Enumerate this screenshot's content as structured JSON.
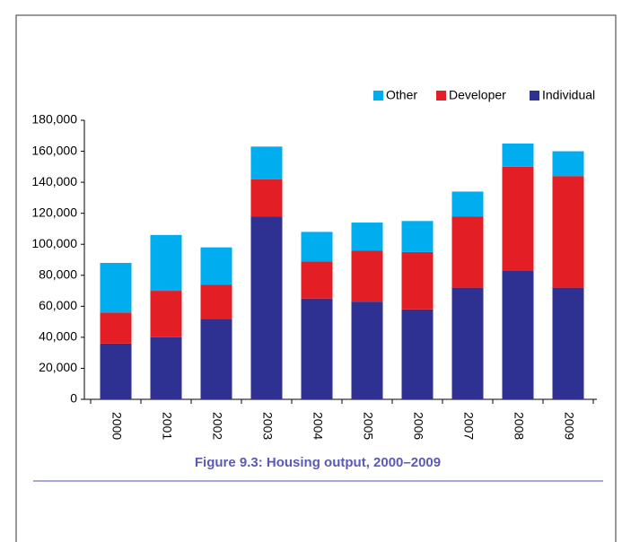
{
  "chart_data": {
    "type": "stacked_bar",
    "caption": "Figure 9.3: Housing output, 2000–2009",
    "categories": [
      "2000",
      "2001",
      "2002",
      "2003",
      "2004",
      "2005",
      "2006",
      "2007",
      "2008",
      "2009"
    ],
    "series": [
      {
        "name": "Other",
        "color": "#00aeef",
        "values": [
          32000,
          36000,
          24000,
          21000,
          19000,
          18000,
          20000,
          16000,
          15000,
          16000
        ]
      },
      {
        "name": "Developer",
        "color": "#e31e24",
        "values": [
          20000,
          30000,
          22000,
          24000,
          24000,
          33000,
          37000,
          46000,
          67000,
          72000
        ]
      },
      {
        "name": "Individual",
        "color": "#2e3192",
        "values": [
          36000,
          40000,
          52000,
          118000,
          65000,
          63000,
          58000,
          72000,
          83000,
          72000
        ]
      }
    ],
    "stack_order": "bottom-up from last series",
    "ylim": [
      0,
      180000
    ],
    "yticks": [
      0,
      {
        "value": 20000,
        "label": "20,000"
      },
      {
        "value": 40000,
        "label": "40,000"
      },
      {
        "value": 60000,
        "label": "60,000"
      },
      {
        "value": 80000,
        "label": "80,000"
      },
      {
        "value": 100000,
        "label": "100,000"
      },
      {
        "value": 120000,
        "label": "120,000"
      },
      {
        "value": 140000,
        "label": "140,000"
      },
      {
        "value": 160000,
        "label": "160,000"
      },
      {
        "value": 180000,
        "label": "180,000"
      }
    ],
    "legend": "top-right",
    "grid": false
  }
}
